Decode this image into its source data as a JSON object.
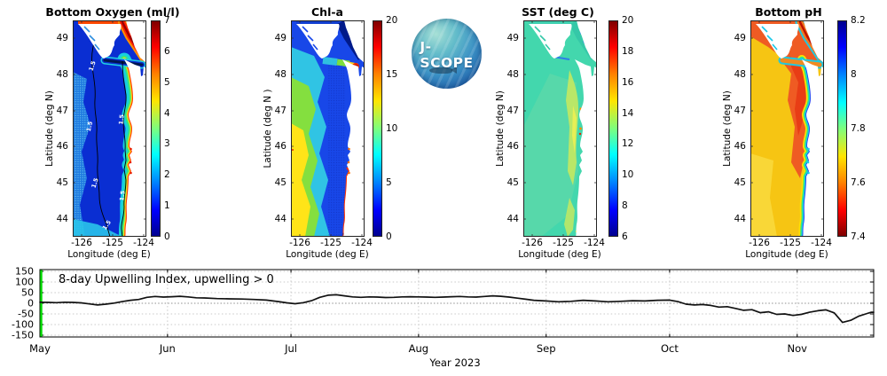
{
  "panels": [
    {
      "id": "bottom-oxygen",
      "title": "Bottom Oxygen (ml/l)",
      "ylabel": "Latitude (deg N)",
      "xlabel": "Longitude (deg E)",
      "yticks": [
        "49",
        "48",
        "47",
        "46",
        "45",
        "44"
      ],
      "xticks": [
        "-126",
        "-125",
        "-124"
      ],
      "colorbar": {
        "ticks": [
          "7",
          "6",
          "5",
          "4",
          "3",
          "2",
          "1",
          "0"
        ],
        "orientation": "max-at-top"
      },
      "contour_label": "1.5",
      "art": {
        "base": "#0a2ed2",
        "stipple": "#1f7ae0",
        "stipple_dot": "#7fd9f5",
        "bottom_wedge": "#29c3ea",
        "coast_bands": [
          "#17cfe0",
          "#37e87b",
          "#ffe012",
          "#ff3c00"
        ],
        "georgia_bands": [
          "#ff9000",
          "#ff2000",
          "#9c0000"
        ],
        "strait_bands": [
          "#1fd0e0",
          "#0a2ed2",
          "#001650"
        ],
        "top_strip": "#ff4800",
        "fjord": "#2f8fe0",
        "estuary": "#e82000",
        "contour": "#000000",
        "contour_text": "#ffffff"
      }
    },
    {
      "id": "chl-a",
      "title": "Chl-a",
      "ylabel": "Latitude (deg N )",
      "xlabel": "Longitude (deg E)",
      "yticks": [
        "49",
        "48",
        "47",
        "46",
        "45",
        "44"
      ],
      "xticks": [
        "-126",
        "-125",
        "-124"
      ],
      "colorbar": {
        "ticks": [
          "20",
          "15",
          "10",
          "5",
          "0"
        ],
        "orientation": "max-at-top"
      },
      "art": {
        "base": "#1847e8",
        "cyan": "#30c4e4",
        "green": "#84df3f",
        "yellow": "#ffe418",
        "speckle_dot": "#0a1f9e",
        "georgia": "#001a8a",
        "strait_segments": [
          "#2fc0e0",
          "#7ddf3f",
          "#ffd020"
        ],
        "bloom_blob": "#e82600",
        "bloom_core": "#7a0000",
        "coast_line": "#ff3000",
        "top_strip": "#123fd0",
        "fjord": "#1847e8",
        "estuary": "#ff7000"
      }
    },
    {
      "id": "sst",
      "title": "SST (deg C)",
      "ylabel": "Latitude (deg N)",
      "xlabel": "Longitude (deg E)",
      "yticks": [
        "49",
        "48",
        "47",
        "46",
        "45",
        "44"
      ],
      "xticks": [
        "-126",
        "-125",
        "-124"
      ],
      "colorbar": {
        "ticks": [
          "20",
          "18",
          "16",
          "14",
          "12",
          "10",
          "8",
          "6"
        ],
        "orientation": "max-at-top"
      },
      "art": {
        "base": "#43d7ad",
        "mottle": "#5fd9a8",
        "warm_band": "#c4e961",
        "warm_core": "#e8ef55",
        "cool": "#2d7de8",
        "georgia": "#35c8a8",
        "hot_spot": "#ff8c00",
        "hot_spot2": "#e82000",
        "top_strip": "#3fd0b0",
        "fjord": "#35c8a8"
      }
    },
    {
      "id": "bottom-ph",
      "title": "Bottom pH",
      "ylabel": "Latitude (deg N)",
      "xlabel": "Longitude (deg E)",
      "yticks": [
        "49",
        "48",
        "47",
        "46",
        "45",
        "44"
      ],
      "xticks": [
        "-126",
        "-125",
        "-124"
      ],
      "colorbar": {
        "ticks": [
          "8.2",
          "8",
          "7.8",
          "7.6",
          "7.4"
        ],
        "orientation": "max-at-top-reversed-colors"
      },
      "art": {
        "base": "#f6c513",
        "low_band": "#ef5b23",
        "low_core": "#e73a14",
        "high_corner": "#f9d93e",
        "coast_bands": [
          "#ffe000",
          "#35e87c",
          "#17cfe8",
          "#1b3ef0"
        ],
        "georgia_bands": [
          "#20c8e0",
          "#f07820",
          "#c01000"
        ],
        "strait_bands": [
          "#20c8e0",
          "#f08a20"
        ],
        "top_strip": "#ef5b23",
        "fjord": "#18c8e8",
        "estuary": "#18d0e8"
      }
    }
  ],
  "logo": {
    "text": "J-SCOPE"
  },
  "timeseries": {
    "annotation": "8-day Upwelling Index, upwelling > 0",
    "xlabel": "Year 2023",
    "months": [
      "May",
      "Jun",
      "Jul",
      "Aug",
      "Sep",
      "Oct",
      "Nov"
    ],
    "yticks": [
      150,
      100,
      50,
      0,
      -50,
      -100,
      -150
    ],
    "start_line_color": "#00dd00",
    "line_color": "#111111"
  },
  "chart_data": [
    {
      "type": "heatmap",
      "title": "Bottom Oxygen (ml/l)",
      "xlabel": "Longitude (deg E)",
      "ylabel": "Latitude (deg N)",
      "xticks": [
        -126,
        -125,
        -124
      ],
      "yticks": [
        49,
        48,
        47,
        46,
        45,
        44
      ],
      "colorbar_range": [
        0,
        7
      ],
      "colorbar_ticks": [
        7,
        6,
        5,
        4,
        3,
        2,
        1,
        0
      ],
      "colormap": "jet",
      "contour_levels": [
        1.5
      ],
      "description": "Hypoxic (<1.5) deep-blue bottom water offshore of WA/OR with 1.5 ml/l contours; oxygenated (4-7) red/yellow band along the coast and Strait of Georgia."
    },
    {
      "type": "heatmap",
      "title": "Chl-a",
      "xlabel": "Longitude (deg E)",
      "ylabel": "Latitude (deg N)",
      "xticks": [
        -126,
        -125,
        -124
      ],
      "yticks": [
        49,
        48,
        47,
        46,
        45,
        44
      ],
      "colorbar_range": [
        0,
        20
      ],
      "colorbar_ticks": [
        20,
        15,
        10,
        5,
        0
      ],
      "colormap": "jet",
      "description": "High chlorophyll (10-15, yellow/green) offshore to the southwest, low (0-5, blue) nearshore; ~20 bloom patch at the eastern Strait of Juan de Fuca."
    },
    {
      "type": "heatmap",
      "title": "SST (deg C)",
      "xlabel": "Longitude (deg E)",
      "ylabel": "Latitude (deg N)",
      "xticks": [
        -126,
        -125,
        -124
      ],
      "yticks": [
        49,
        48,
        47,
        46,
        45,
        44
      ],
      "colorbar_range": [
        6,
        20
      ],
      "colorbar_ticks": [
        20,
        18,
        16,
        14,
        12,
        10,
        8,
        6
      ],
      "colormap": "jet",
      "description": "Fairly uniform 12-13 C surface water; slightly warmer 14-15 C yellow-green band nearshore with small 16-18 C spots at estuaries; cooler ~10 C patches in the Strait of Georgia."
    },
    {
      "type": "heatmap",
      "title": "Bottom pH",
      "xlabel": "Longitude (deg E)",
      "ylabel": "Latitude (deg N)",
      "xticks": [
        -126,
        -125,
        -124
      ],
      "yticks": [
        49,
        48,
        47,
        46,
        45,
        44
      ],
      "colorbar_range": [
        7.4,
        8.2
      ],
      "colorbar_ticks": [
        8.2,
        8,
        7.8,
        7.6,
        7.4
      ],
      "colormap": "jet-reversed",
      "description": "Corrosive bottom water (pH 7.5-7.65, orange/red) over the shelf and offshore; higher pH 7.9-8.2 (cyan/blue) fringe right along the coast, estuaries and inland waters."
    },
    {
      "type": "line",
      "title": "8-day Upwelling Index, upwelling > 0",
      "xlabel": "Year 2023",
      "x_unit": "days since May 1, 2023",
      "month_ticks": [
        "May",
        "Jun",
        "Jul",
        "Aug",
        "Sep",
        "Oct",
        "Nov"
      ],
      "month_day_offsets": [
        0,
        31,
        61,
        92,
        123,
        153,
        184
      ],
      "ylim": [
        -150,
        150
      ],
      "yticks": [
        150,
        100,
        50,
        0,
        -50,
        -100,
        -150
      ],
      "grid": "dotted horizontal and vertical",
      "start_marker": "green vertical line at May 1",
      "series": [
        {
          "name": "upwelling_index",
          "points": [
            [
              0,
              5
            ],
            [
              2,
              4
            ],
            [
              4,
              3
            ],
            [
              6,
              5
            ],
            [
              8,
              4
            ],
            [
              10,
              2
            ],
            [
              12,
              -3
            ],
            [
              14,
              -8
            ],
            [
              16,
              -4
            ],
            [
              18,
              1
            ],
            [
              20,
              8
            ],
            [
              22,
              14
            ],
            [
              24,
              18
            ],
            [
              26,
              28
            ],
            [
              28,
              32
            ],
            [
              30,
              29
            ],
            [
              32,
              31
            ],
            [
              34,
              33
            ],
            [
              36,
              30
            ],
            [
              38,
              26
            ],
            [
              40,
              25
            ],
            [
              43,
              22
            ],
            [
              46,
              21
            ],
            [
              49,
              20
            ],
            [
              52,
              18
            ],
            [
              55,
              15
            ],
            [
              58,
              8
            ],
            [
              60,
              2
            ],
            [
              62,
              -2
            ],
            [
              64,
              3
            ],
            [
              66,
              12
            ],
            [
              68,
              28
            ],
            [
              70,
              38
            ],
            [
              72,
              40
            ],
            [
              74,
              35
            ],
            [
              76,
              30
            ],
            [
              78,
              28
            ],
            [
              80,
              30
            ],
            [
              82,
              29
            ],
            [
              84,
              27
            ],
            [
              86,
              28
            ],
            [
              88,
              30
            ],
            [
              90,
              31
            ],
            [
              92,
              30
            ],
            [
              94,
              29
            ],
            [
              96,
              28
            ],
            [
              98,
              29
            ],
            [
              100,
              31
            ],
            [
              102,
              32
            ],
            [
              104,
              30
            ],
            [
              106,
              29
            ],
            [
              108,
              32
            ],
            [
              110,
              35
            ],
            [
              112,
              33
            ],
            [
              114,
              29
            ],
            [
              116,
              24
            ],
            [
              118,
              19
            ],
            [
              120,
              14
            ],
            [
              123,
              11
            ],
            [
              126,
              7
            ],
            [
              129,
              9
            ],
            [
              132,
              14
            ],
            [
              135,
              11
            ],
            [
              138,
              7
            ],
            [
              141,
              9
            ],
            [
              144,
              12
            ],
            [
              147,
              11
            ],
            [
              150,
              14
            ],
            [
              153,
              15
            ],
            [
              155,
              8
            ],
            [
              157,
              -4
            ],
            [
              159,
              -8
            ],
            [
              161,
              -6
            ],
            [
              163,
              -10
            ],
            [
              165,
              -18
            ],
            [
              167,
              -16
            ],
            [
              169,
              -24
            ],
            [
              171,
              -33
            ],
            [
              173,
              -30
            ],
            [
              175,
              -44
            ],
            [
              177,
              -40
            ],
            [
              179,
              -52
            ],
            [
              181,
              -50
            ],
            [
              183,
              -57
            ],
            [
              185,
              -52
            ],
            [
              187,
              -42
            ],
            [
              189,
              -35
            ],
            [
              191,
              -31
            ],
            [
              193,
              -45
            ],
            [
              195,
              -90
            ],
            [
              197,
              -80
            ],
            [
              199,
              -60
            ],
            [
              201,
              -48
            ],
            [
              202,
              -42
            ]
          ]
        }
      ]
    }
  ]
}
